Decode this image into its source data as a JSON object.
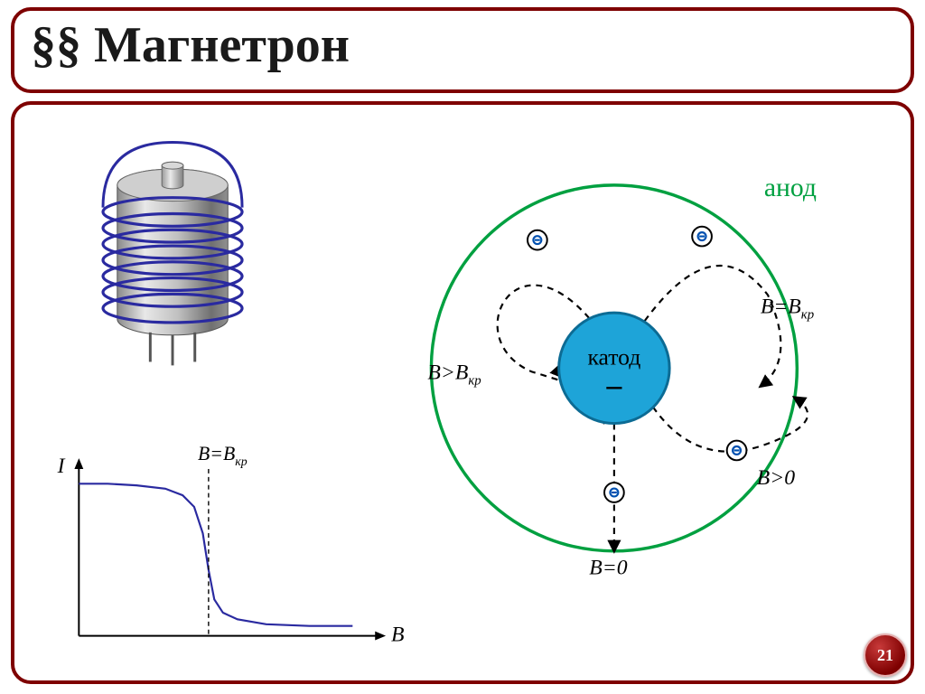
{
  "title": "§§ Магнетрон",
  "page_number": "21",
  "colors": {
    "panel_border": "#7e0000",
    "title_text": "#1a1a1a",
    "badge_bg_light": "#c83a3a",
    "badge_bg_dark": "#7e0000",
    "anode_ring": "#00a040",
    "anode_label": "#00a040",
    "cathode_fill": "#1ea4d8",
    "cathode_stroke": "#0c6b94",
    "cathode_text": "#000000",
    "trajectory": "#000000",
    "electron_fill": "#ffffff",
    "electron_stroke": "#000000",
    "electron_minus": "#0050b0",
    "curve": "#2a2aa0",
    "axis": "#000000",
    "coil_winding": "#2a2aa0",
    "cylinder_light": "#f0f0f0",
    "cylinder_mid": "#b8b8b8",
    "cylinder_dark": "#6e6e6e"
  },
  "chart": {
    "type": "line",
    "y_label": "I",
    "x_label": "B",
    "critical_label": "B=B",
    "critical_sub": "кр",
    "xlim": [
      0,
      1
    ],
    "ylim": [
      0,
      1
    ],
    "critical_x": 0.45,
    "points": [
      [
        0,
        0.92
      ],
      [
        0.1,
        0.92
      ],
      [
        0.2,
        0.91
      ],
      [
        0.3,
        0.89
      ],
      [
        0.36,
        0.85
      ],
      [
        0.4,
        0.78
      ],
      [
        0.43,
        0.62
      ],
      [
        0.45,
        0.4
      ],
      [
        0.47,
        0.22
      ],
      [
        0.5,
        0.14
      ],
      [
        0.55,
        0.1
      ],
      [
        0.65,
        0.07
      ],
      [
        0.8,
        0.06
      ],
      [
        0.95,
        0.06
      ]
    ],
    "axis_stroke_width": 2,
    "curve_stroke_width": 2.2
  },
  "diagram": {
    "anode_label": "анод",
    "cathode_label": "катод",
    "cathode_minus": "–",
    "anode_radius": 205,
    "cathode_radius": 62,
    "ring_stroke_width": 3.5,
    "cathode_stroke_width": 3,
    "trajectory_stroke_width": 2.2,
    "labels": {
      "b_zero": "B=0",
      "b_gt_zero": "B>0",
      "b_eq_crit": "B=B",
      "b_eq_crit_sub": "кр",
      "b_gt_crit": "B>B",
      "b_gt_crit_sub": "кр"
    }
  },
  "device_3d": {
    "coil_turns": 7,
    "pin_count": 3
  }
}
